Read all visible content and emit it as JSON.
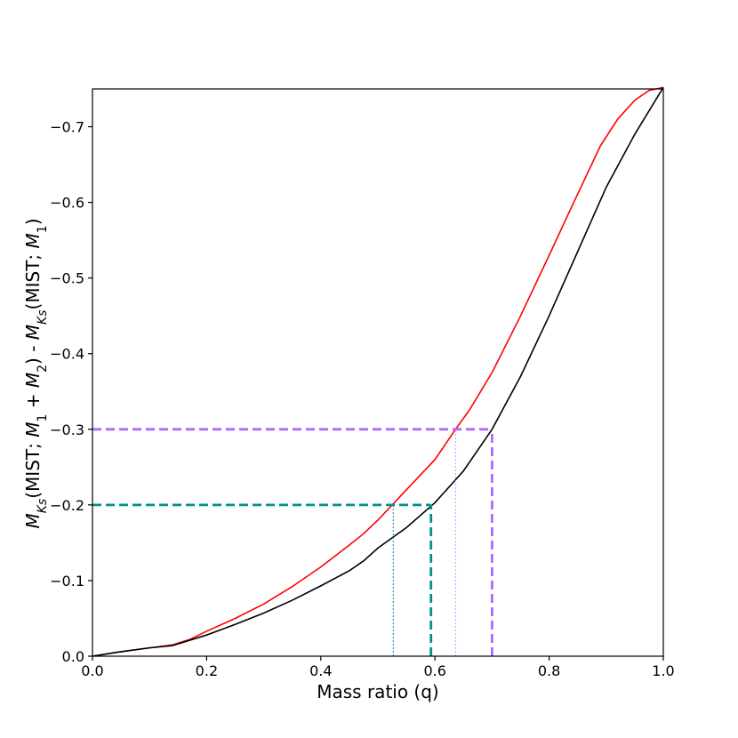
{
  "chart_data": {
    "type": "line",
    "xlabel": "Mass ratio (q)",
    "ylabel_parts": [
      {
        "t": "M",
        "style": "italic"
      },
      {
        "t": "Ks",
        "style": "sub-italic"
      },
      {
        "t": "(MIST; ",
        "style": "normal"
      },
      {
        "t": "M",
        "style": "italic"
      },
      {
        "t": "1",
        "style": "sub"
      },
      {
        "t": " + ",
        "style": "normal"
      },
      {
        "t": "M",
        "style": "italic"
      },
      {
        "t": "2",
        "style": "sub"
      },
      {
        "t": ") - ",
        "style": "normal"
      },
      {
        "t": "M",
        "style": "italic"
      },
      {
        "t": "Ks",
        "style": "sub-italic"
      },
      {
        "t": "(MIST; ",
        "style": "normal"
      },
      {
        "t": "M",
        "style": "italic"
      },
      {
        "t": "1",
        "style": "sub"
      },
      {
        "t": ")",
        "style": "normal"
      }
    ],
    "xlim": [
      0.0,
      1.0
    ],
    "ylim": [
      0.0,
      -0.75
    ],
    "y_inverted": true,
    "grid": false,
    "xticks": [
      {
        "value": 0.0,
        "label": "0.0"
      },
      {
        "value": 0.2,
        "label": "0.2"
      },
      {
        "value": 0.4,
        "label": "0.4"
      },
      {
        "value": 0.6,
        "label": "0.6"
      },
      {
        "value": 0.8,
        "label": "0.8"
      },
      {
        "value": 1.0,
        "label": "1.0"
      }
    ],
    "yticks": [
      {
        "value": 0.0,
        "label": "0.0"
      },
      {
        "value": -0.1,
        "label": "−0.1"
      },
      {
        "value": -0.2,
        "label": "−0.2"
      },
      {
        "value": -0.3,
        "label": "−0.3"
      },
      {
        "value": -0.4,
        "label": "−0.4"
      },
      {
        "value": -0.5,
        "label": "−0.5"
      },
      {
        "value": -0.6,
        "label": "−0.6"
      },
      {
        "value": -0.7,
        "label": "−0.7"
      }
    ],
    "series": [
      {
        "color": "#ff0000",
        "x": [
          0.0,
          0.05,
          0.1,
          0.14,
          0.17,
          0.2,
          0.25,
          0.3,
          0.35,
          0.4,
          0.45,
          0.475,
          0.5,
          0.55,
          0.6,
          0.636,
          0.66,
          0.7,
          0.75,
          0.8,
          0.84,
          0.89,
          0.92,
          0.95,
          0.975,
          1.0
        ],
        "y": [
          0.0,
          -0.006,
          -0.011,
          -0.015,
          -0.022,
          -0.033,
          -0.05,
          -0.069,
          -0.092,
          -0.118,
          -0.147,
          -0.162,
          -0.18,
          -0.22,
          -0.26,
          -0.3,
          -0.325,
          -0.375,
          -0.45,
          -0.53,
          -0.595,
          -0.675,
          -0.71,
          -0.735,
          -0.748,
          -0.752
        ]
      },
      {
        "color": "#000000",
        "x": [
          0.0,
          0.05,
          0.1,
          0.14,
          0.2,
          0.25,
          0.3,
          0.35,
          0.4,
          0.45,
          0.475,
          0.5,
          0.55,
          0.6,
          0.65,
          0.7,
          0.75,
          0.8,
          0.85,
          0.9,
          0.95,
          1.0
        ],
        "y": [
          0.0,
          -0.006,
          -0.011,
          -0.014,
          -0.028,
          -0.042,
          -0.057,
          -0.074,
          -0.093,
          -0.113,
          -0.126,
          -0.143,
          -0.17,
          -0.203,
          -0.245,
          -0.3,
          -0.37,
          -0.45,
          -0.535,
          -0.62,
          -0.69,
          -0.752
        ]
      }
    ],
    "annotations": [
      {
        "kind": "hline",
        "y": -0.2,
        "x_from": 0.0,
        "x_to": 0.593,
        "color": "#009090",
        "style": "dashed-thick"
      },
      {
        "kind": "vline",
        "x": 0.593,
        "y_from": 0.0,
        "y_to": -0.2,
        "color": "#009090",
        "style": "dashed-thick"
      },
      {
        "kind": "vline",
        "x": 0.527,
        "y_from": 0.0,
        "y_to": -0.2,
        "color": "#1f77b4",
        "style": "dotted-thin"
      },
      {
        "kind": "hline",
        "y": -0.3,
        "x_from": 0.0,
        "x_to": 0.7,
        "color": "#b266ff",
        "style": "dashed-thick"
      },
      {
        "kind": "vline",
        "x": 0.7,
        "y_from": 0.0,
        "y_to": -0.3,
        "color": "#b266ff",
        "style": "dashed-thick"
      },
      {
        "kind": "vline",
        "x": 0.636,
        "y_from": 0.0,
        "y_to": -0.3,
        "color": "#dd88ff",
        "style": "dotted-thin"
      }
    ]
  }
}
